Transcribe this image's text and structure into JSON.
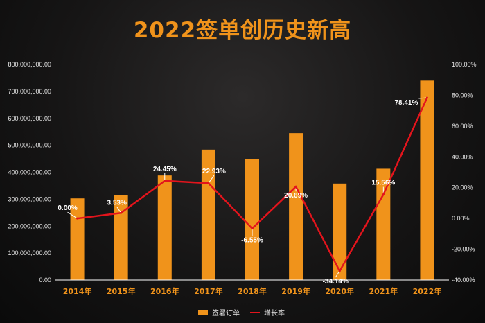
{
  "title": "2022签单创历史新高",
  "colors": {
    "bar": "#f0931b",
    "line": "#e3141c",
    "title": "#f0931b",
    "axis": "#ffffff"
  },
  "chart_data": {
    "type": "bar+line",
    "title": "2022签单创历史新高",
    "categories": [
      "2014年",
      "2015年",
      "2016年",
      "2017年",
      "2018年",
      "2019年",
      "2020年",
      "2021年",
      "2022年"
    ],
    "series": [
      {
        "name": "签署订单",
        "type": "bar",
        "axis": "left",
        "values": [
          303000000,
          315000000,
          388000000,
          484000000,
          450000000,
          545000000,
          358000000,
          413000000,
          740000000
        ]
      },
      {
        "name": "增长率",
        "type": "line",
        "axis": "right",
        "values": [
          0.0,
          3.53,
          24.45,
          22.93,
          -6.55,
          20.69,
          -34.14,
          15.56,
          78.41
        ],
        "labels": [
          "0.00%",
          "3.53%",
          "24.45%",
          "22.93%",
          "-6.55%",
          "20.69%",
          "-34.14%",
          "15.56%",
          "78.41%"
        ]
      }
    ],
    "y_left": {
      "min": 0,
      "max": 800000000,
      "ticks": [
        "0.00",
        "100,000,000.00",
        "200,000,000.00",
        "300,000,000.00",
        "400,000,000.00",
        "500,000,000.00",
        "600,000,000.00",
        "700,000,000.00",
        "800,000,000.00"
      ]
    },
    "y_right": {
      "min": -40,
      "max": 100,
      "ticks": [
        "-40.00%",
        "-20.00%",
        "0.00%",
        "20.00%",
        "40.00%",
        "60.00%",
        "80.00%",
        "100.00%"
      ]
    },
    "grid": false,
    "legend_position": "bottom"
  }
}
